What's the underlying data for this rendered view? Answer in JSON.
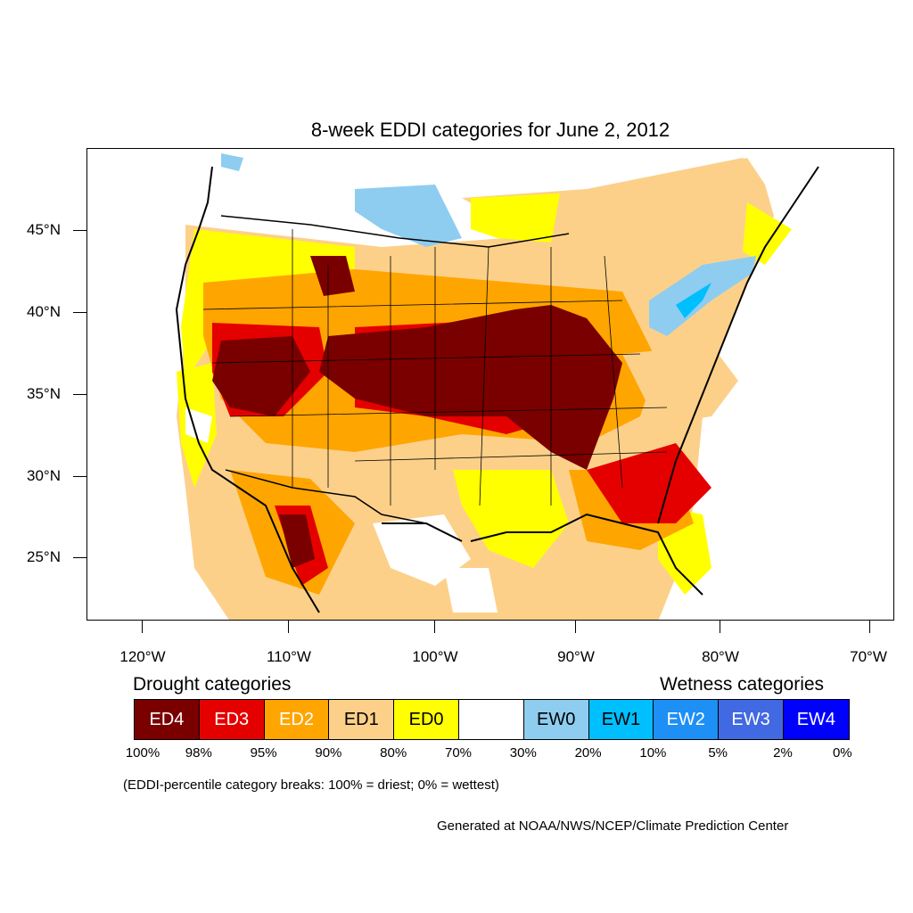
{
  "title": "8-week EDDI categories for June 2, 2012",
  "y_axis": {
    "ticks": [
      "45°N",
      "40°N",
      "35°N",
      "30°N",
      "25°N"
    ]
  },
  "x_axis": {
    "ticks": [
      "120°W",
      "110°W",
      "100°W",
      "90°W",
      "80°W",
      "70°W"
    ]
  },
  "legend": {
    "drought_heading": "Drought categories",
    "wetness_heading": "Wetness categories",
    "categories": [
      {
        "label": "ED4",
        "color": "#7a0000",
        "text_color": "#ffffff"
      },
      {
        "label": "ED3",
        "color": "#e50000",
        "text_color": "#ffffff"
      },
      {
        "label": "ED2",
        "color": "#ffa500",
        "text_color": "#ffffff"
      },
      {
        "label": "ED1",
        "color": "#fdd08a",
        "text_color": "#000000"
      },
      {
        "label": "ED0",
        "color": "#ffff00",
        "text_color": "#000000"
      },
      {
        "label": "",
        "color": "#ffffff",
        "text_color": "#000000"
      },
      {
        "label": "EW0",
        "color": "#8ecdf0",
        "text_color": "#000000"
      },
      {
        "label": "EW1",
        "color": "#00bfff",
        "text_color": "#000000"
      },
      {
        "label": "EW2",
        "color": "#1e8ff5",
        "text_color": "#ffffff"
      },
      {
        "label": "EW3",
        "color": "#4169e1",
        "text_color": "#ffffff"
      },
      {
        "label": "EW4",
        "color": "#0000ff",
        "text_color": "#ffffff"
      }
    ],
    "percentiles": [
      "100%",
      "98%",
      "95%",
      "90%",
      "80%",
      "70%",
      "30%",
      "20%",
      "10%",
      "5%",
      "2%",
      "0%"
    ]
  },
  "note": "(EDDI-percentile category breaks: 100% = driest; 0% = wettest)",
  "credit": "Generated at NOAA/NWS/NCEP/Climate Prediction Center"
}
